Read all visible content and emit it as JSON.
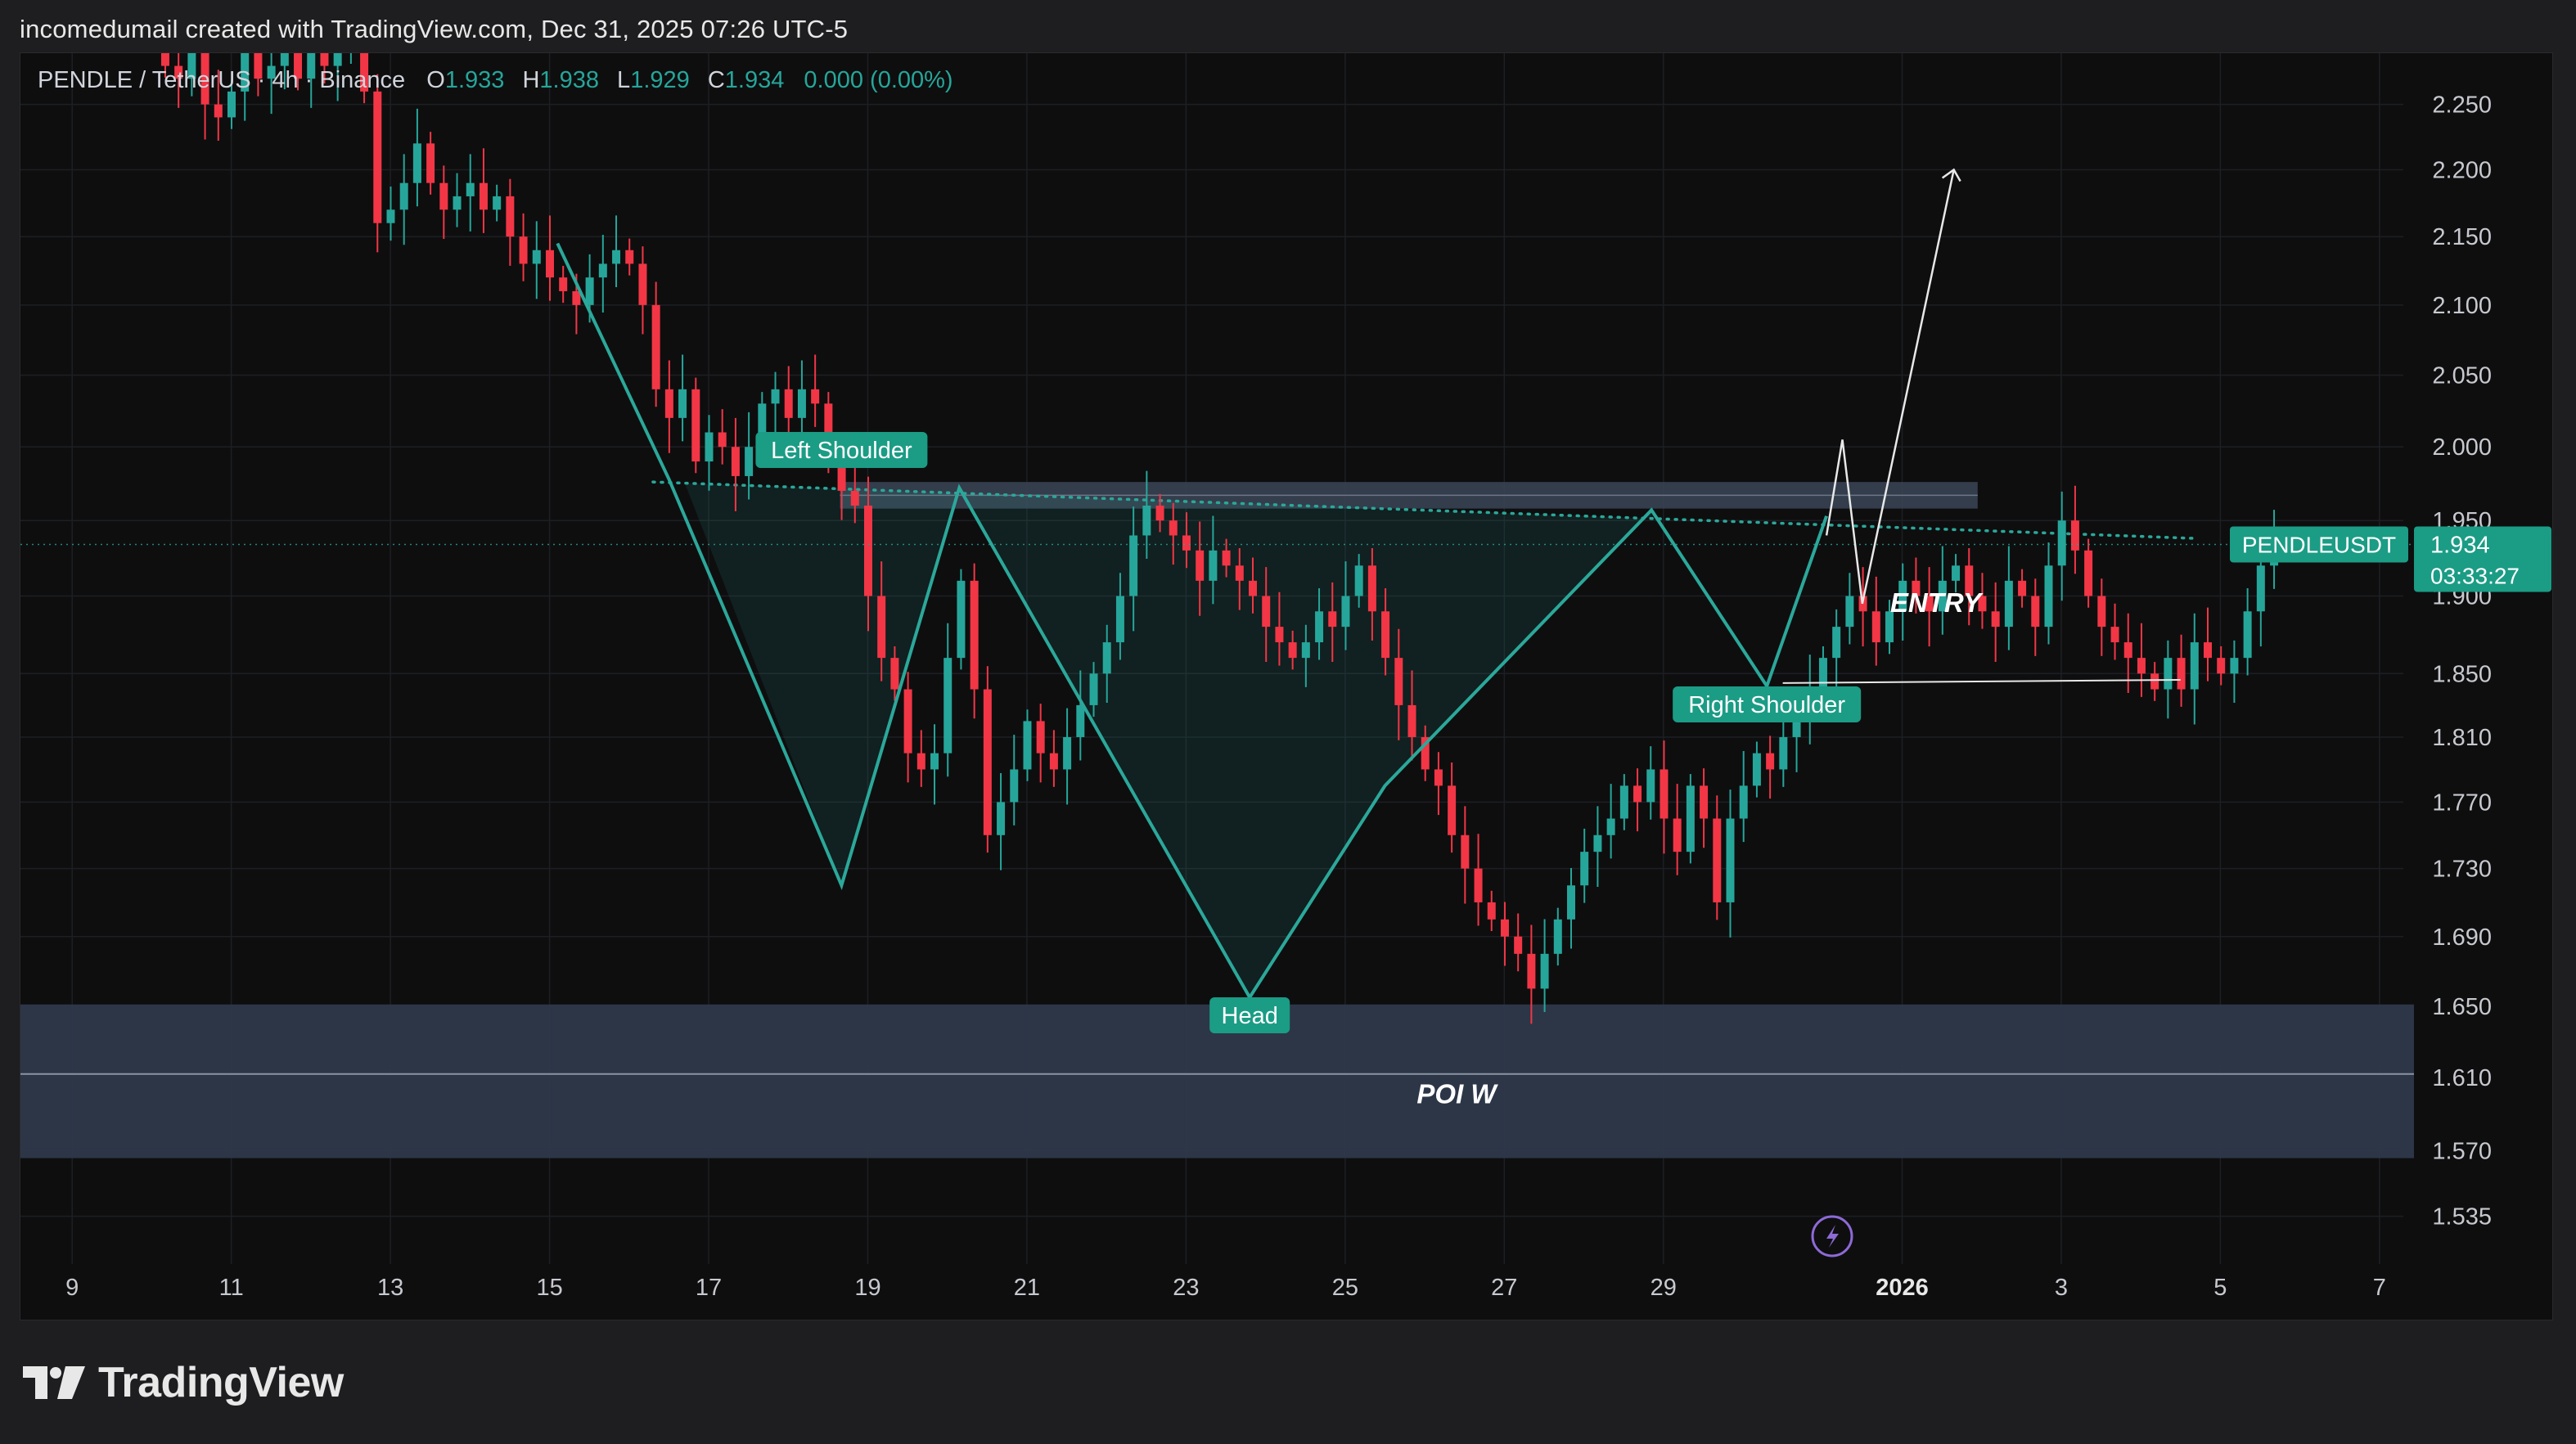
{
  "header": {
    "attribution": "incomedumail created with TradingView.com, Dec 31, 2025 07:26 UTC-5"
  },
  "legend": {
    "symbol_line": "PENDLE / TetherUS · 4h · Binance",
    "open_label": "O",
    "open": "1.933",
    "high_label": "H",
    "high": "1.938",
    "low_label": "L",
    "low": "1.929",
    "close_label": "C",
    "close": "1.934",
    "change": "0.000 (0.00%)"
  },
  "price_tag": {
    "symbol": "PENDLEUSDT",
    "price": "1.934",
    "countdown": "03:33:27"
  },
  "annotations": {
    "left_shoulder": "Left Shoulder",
    "head": "Head",
    "right_shoulder": "Right Shoulder",
    "entry": "ENTRY",
    "poi": "POI W"
  },
  "footer": {
    "brand": "TradingView"
  },
  "colors": {
    "up": "#26a69a",
    "down": "#f23645",
    "pattern": "#2ba89a",
    "label_bg": "#1b9c85",
    "zone": "#2f3a4c",
    "background": "#0e0e0f"
  },
  "chart_data": {
    "type": "candlestick",
    "title": "PENDLE / TetherUS · 4h · Binance",
    "x_ticks": [
      "9",
      "11",
      "13",
      "15",
      "17",
      "19",
      "21",
      "23",
      "25",
      "27",
      "29",
      "2026",
      "3",
      "5",
      "7"
    ],
    "x_tick_days": [
      9,
      11,
      13,
      15,
      17,
      19,
      21,
      23,
      25,
      27,
      29,
      32,
      34,
      36,
      38
    ],
    "x_tick_emphasis": "2026",
    "x_range_days": [
      8.35,
      38.3
    ],
    "y_ticks": [
      {
        "label": "2.250",
        "v": 2.25
      },
      {
        "label": "2.200",
        "v": 2.2
      },
      {
        "label": "2.150",
        "v": 2.15
      },
      {
        "label": "2.100",
        "v": 2.1
      },
      {
        "label": "2.050",
        "v": 2.05
      },
      {
        "label": "2.000",
        "v": 2.0
      },
      {
        "label": "1.950",
        "v": 1.95
      },
      {
        "label": "1.900",
        "v": 1.9
      },
      {
        "label": "1.850",
        "v": 1.85
      },
      {
        "label": "1.810",
        "v": 1.81
      },
      {
        "label": "1.770",
        "v": 1.77
      },
      {
        "label": "1.730",
        "v": 1.73
      },
      {
        "label": "1.690",
        "v": 1.69
      },
      {
        "label": "1.650",
        "v": 1.65
      },
      {
        "label": "1.610",
        "v": 1.61
      },
      {
        "label": "1.570",
        "v": 1.57
      },
      {
        "label": "1.535",
        "v": 1.535
      }
    ],
    "y_scale": "log",
    "y_range": [
      1.51,
      2.29
    ],
    "grid": true,
    "last_price": 1.934,
    "candles_start_day": 10.17,
    "candle_interval_days": 0.1667,
    "closes": [
      2.28,
      2.27,
      2.3,
      2.25,
      2.24,
      2.26,
      2.29,
      2.27,
      2.28,
      2.3,
      2.27,
      2.29,
      2.28,
      2.3,
      2.31,
      2.26,
      2.16,
      2.17,
      2.19,
      2.22,
      2.19,
      2.17,
      2.18,
      2.19,
      2.17,
      2.18,
      2.15,
      2.13,
      2.14,
      2.12,
      2.11,
      2.1,
      2.12,
      2.13,
      2.14,
      2.13,
      2.1,
      2.04,
      2.02,
      2.04,
      1.99,
      2.01,
      2.0,
      1.98,
      2.0,
      2.03,
      2.04,
      2.02,
      2.04,
      2.03,
      1.99,
      1.97,
      1.96,
      1.9,
      1.86,
      1.84,
      1.8,
      1.79,
      1.8,
      1.86,
      1.91,
      1.84,
      1.75,
      1.77,
      1.79,
      1.82,
      1.8,
      1.79,
      1.81,
      1.83,
      1.85,
      1.87,
      1.9,
      1.94,
      1.96,
      1.95,
      1.94,
      1.93,
      1.91,
      1.93,
      1.92,
      1.91,
      1.9,
      1.88,
      1.87,
      1.86,
      1.87,
      1.89,
      1.88,
      1.9,
      1.92,
      1.89,
      1.86,
      1.83,
      1.81,
      1.79,
      1.78,
      1.75,
      1.73,
      1.71,
      1.7,
      1.69,
      1.68,
      1.66,
      1.68,
      1.7,
      1.72,
      1.74,
      1.75,
      1.76,
      1.78,
      1.77,
      1.79,
      1.76,
      1.74,
      1.78,
      1.76,
      1.71,
      1.76,
      1.78,
      1.8,
      1.79,
      1.81,
      1.82,
      1.84,
      1.86,
      1.88,
      1.9,
      1.89,
      1.87,
      1.89,
      1.91,
      1.9,
      1.89,
      1.91,
      1.92,
      1.9,
      1.89,
      1.88,
      1.91,
      1.9,
      1.88,
      1.92,
      1.95,
      1.93,
      1.9,
      1.88,
      1.87,
      1.86,
      1.85,
      1.84,
      1.86,
      1.84,
      1.87,
      1.86,
      1.85,
      1.86,
      1.89,
      1.92,
      1.934
    ]
  }
}
